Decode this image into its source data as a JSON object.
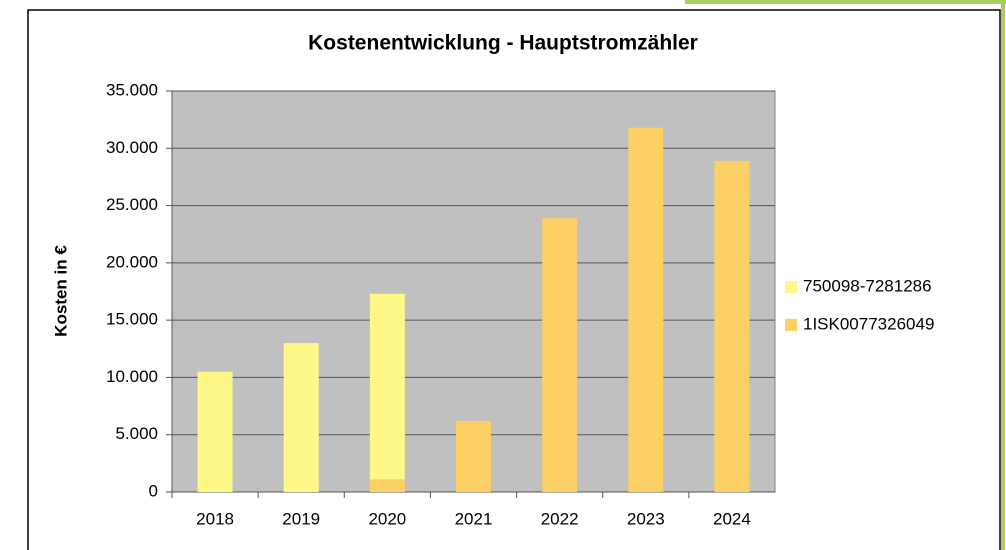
{
  "chart_data": {
    "type": "stacked_bar",
    "title": "Kostenentwicklung - Hauptstromzähler",
    "y_label": "Kosten in €",
    "categories": [
      "2018",
      "2019",
      "2020",
      "2021",
      "2022",
      "2023",
      "2024"
    ],
    "series": [
      {
        "name": "750098-7281286",
        "color": "#fdf888",
        "values": [
          10500,
          13000,
          16200,
          null,
          null,
          null,
          null
        ]
      },
      {
        "name": "1ISK0077326049",
        "color": "#fcd065",
        "values": [
          null,
          null,
          1100,
          6200,
          23900,
          31800,
          28900
        ]
      }
    ],
    "ylim": [
      0,
      35000
    ],
    "yticks": [
      0,
      {
        "value": 5000,
        "label": "5.000"
      },
      {
        "value": 10000,
        "label": "10.000"
      },
      {
        "value": 15000,
        "label": "15.000"
      },
      {
        "value": 20000,
        "label": "20.000"
      },
      {
        "value": 25000,
        "label": "25.000"
      },
      {
        "value": 30000,
        "label": "30.000"
      },
      {
        "value": 35000,
        "label": "35.000"
      }
    ],
    "grid": true,
    "legend": "right"
  }
}
